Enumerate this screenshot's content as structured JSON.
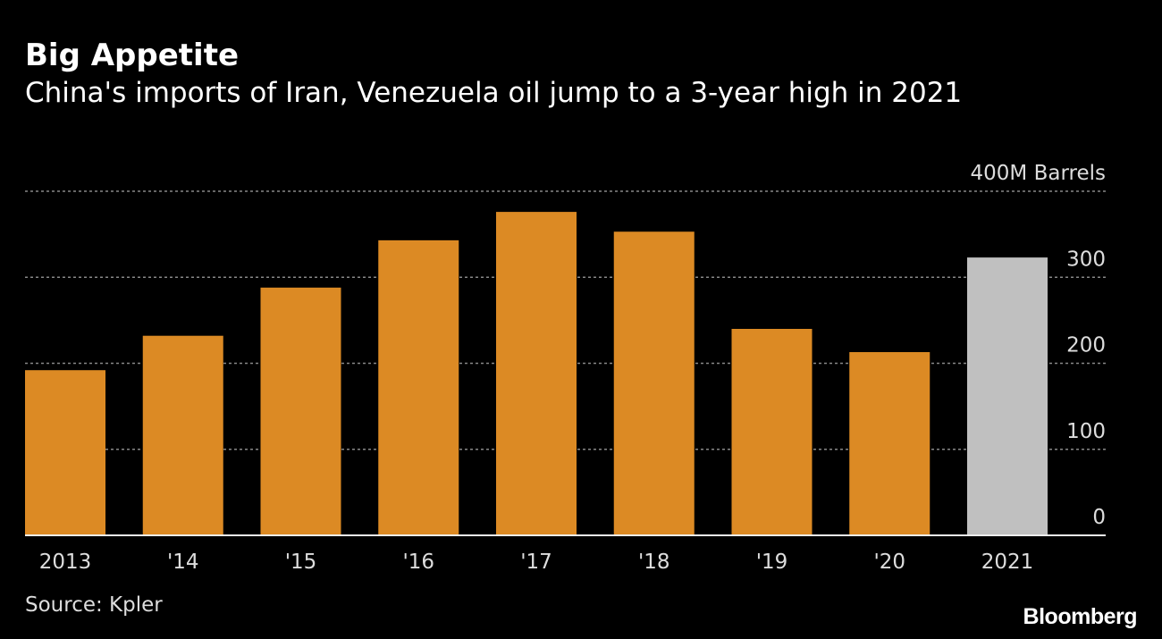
{
  "title": "Big Appetite",
  "subtitle": "China's imports of Iran, Venezuela oil jump to a 3-year high in 2021",
  "source": "Source: Kpler",
  "logo": "Bloomberg",
  "colors": {
    "bar": "#dc8a24",
    "highlight": "#c0c0c0",
    "background": "#000000"
  },
  "chart_data": {
    "type": "bar",
    "categories": [
      "2013",
      "'14",
      "'15",
      "'16",
      "'17",
      "'18",
      "'19",
      "'20",
      "2021"
    ],
    "values": [
      192,
      232,
      288,
      343,
      376,
      353,
      240,
      213,
      323
    ],
    "highlight_category": "2021",
    "ylabel": "400M Barrels",
    "yticks": [
      0,
      100,
      200,
      300,
      400
    ],
    "ytick_labels": [
      "0",
      "100",
      "200",
      "300",
      "400M Barrels"
    ],
    "ylim": [
      0,
      400
    ],
    "grid": true,
    "y_axis_side": "right"
  }
}
